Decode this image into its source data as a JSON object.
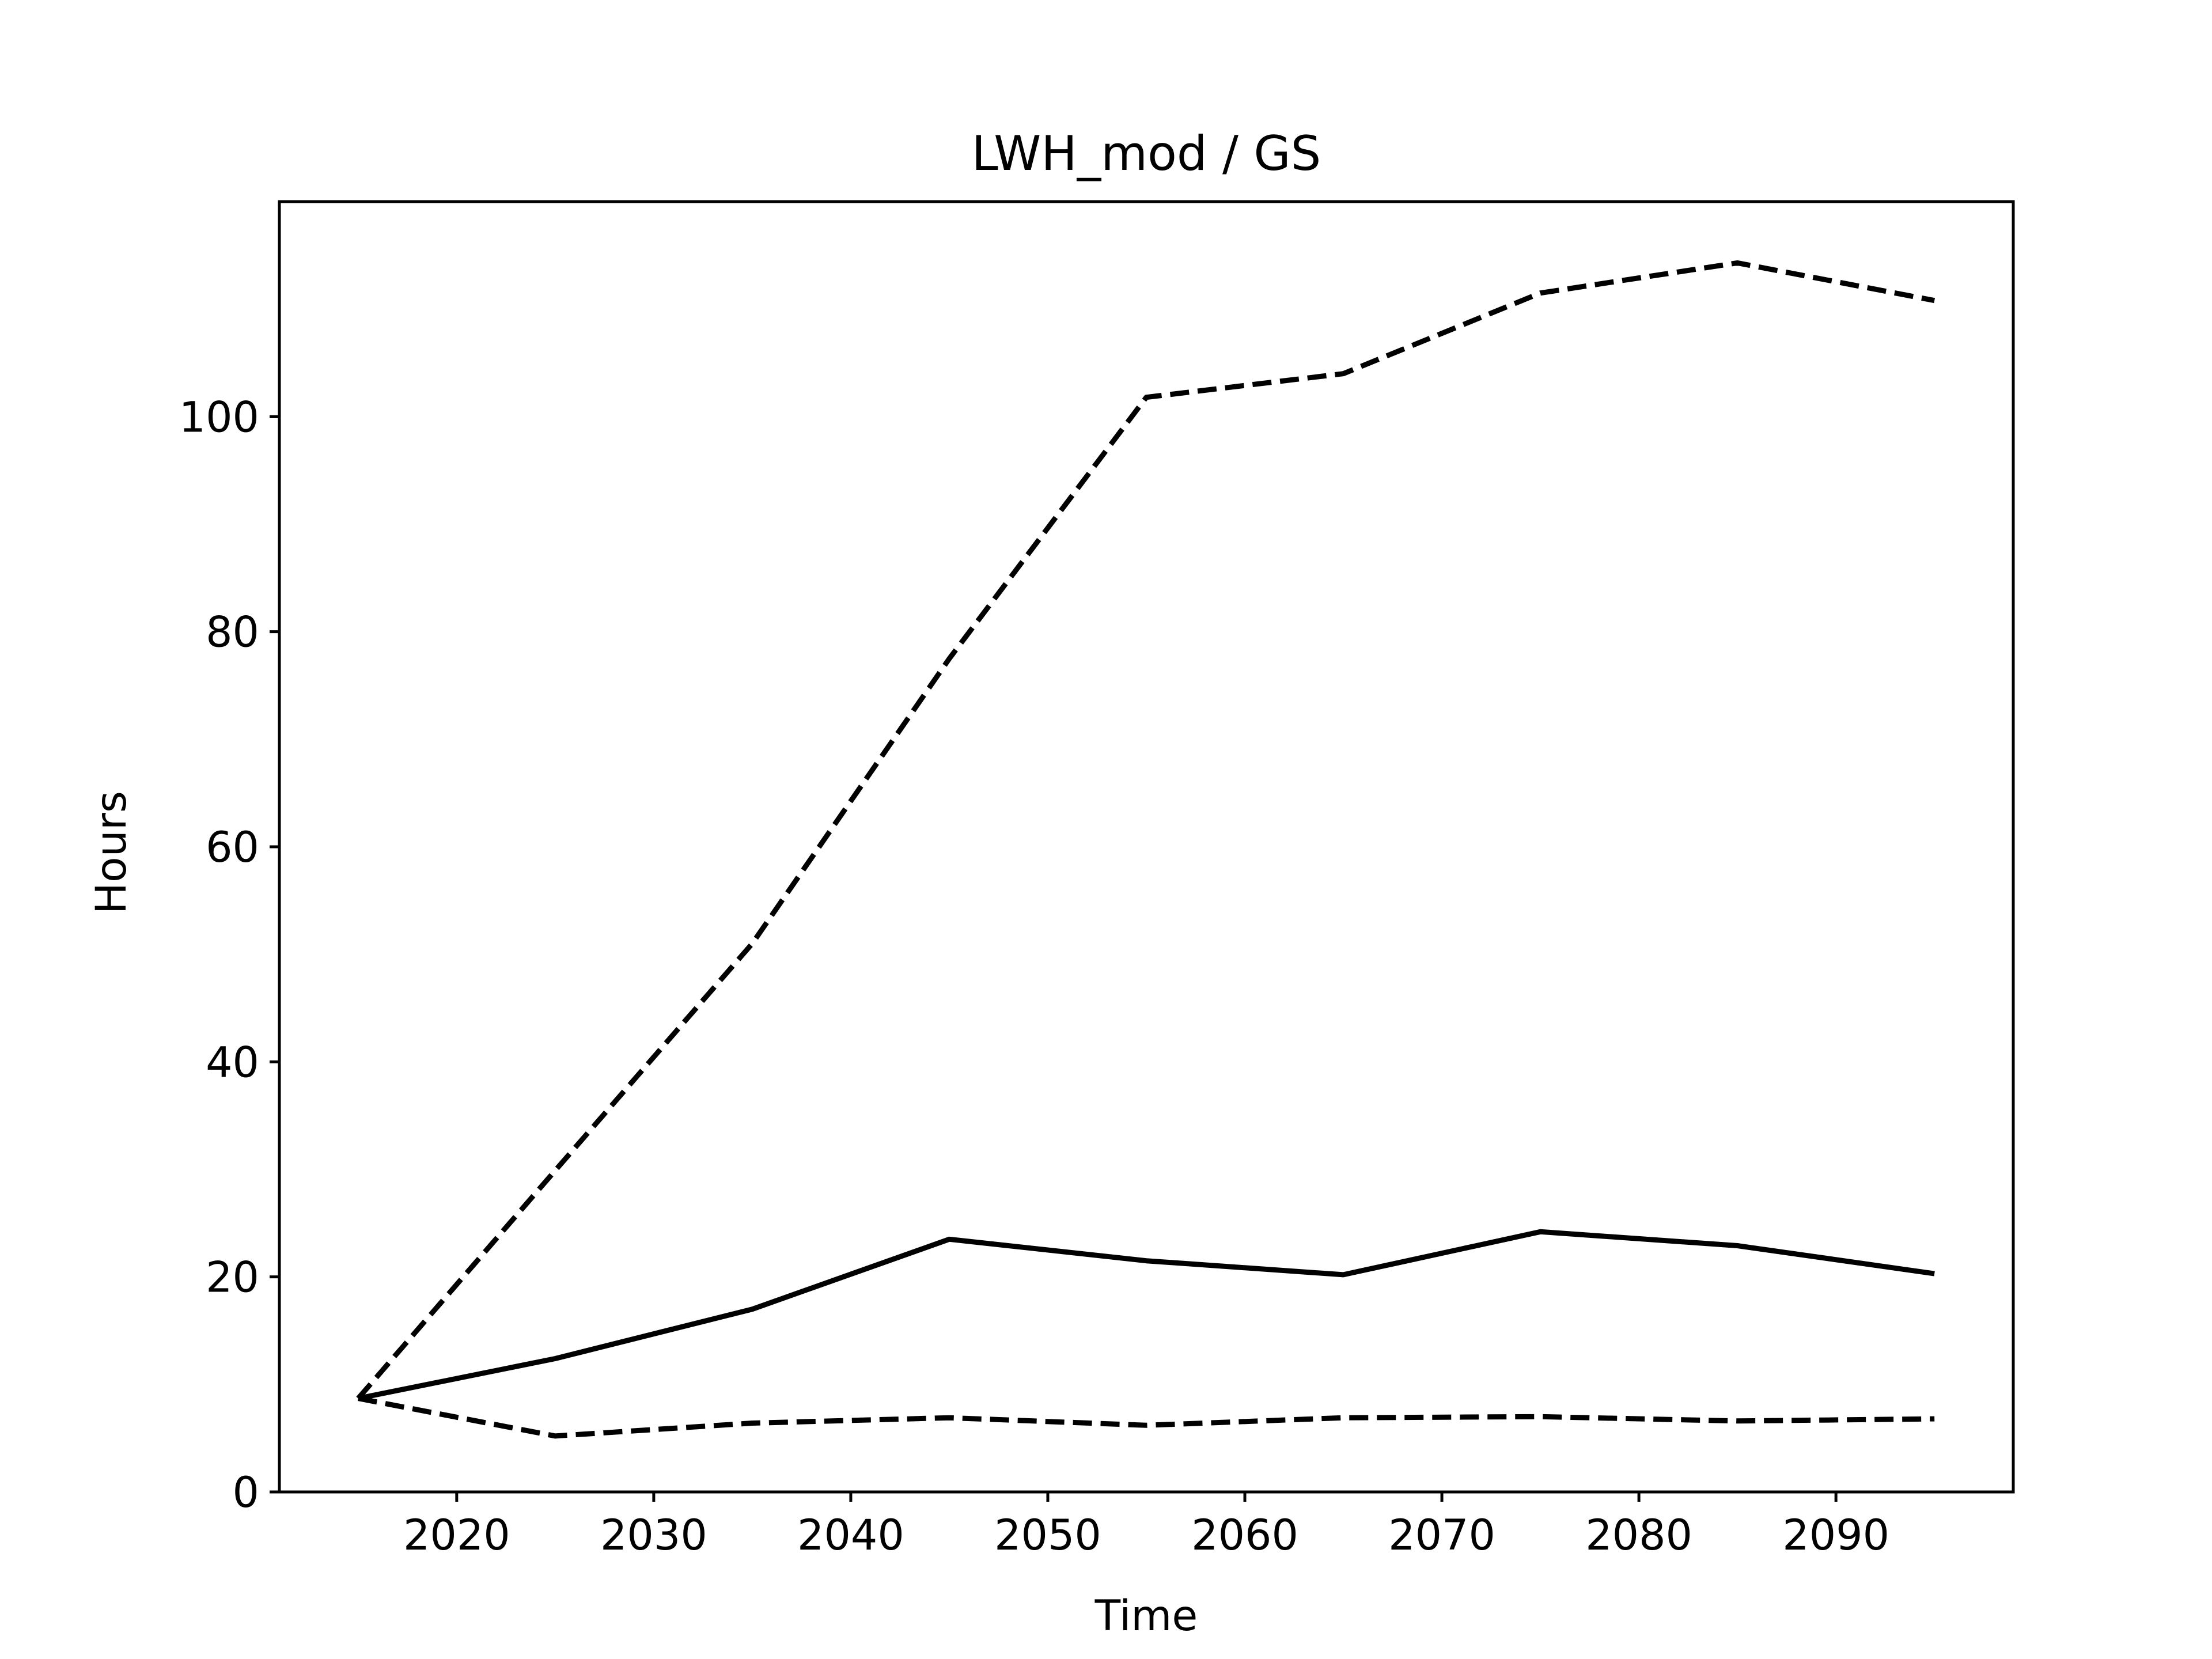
{
  "chart_data": {
    "type": "line",
    "title": "LWH_mod / GS",
    "xlabel": "Time",
    "ylabel": "Hours",
    "xlim": [
      2011,
      2099
    ],
    "ylim": [
      0,
      120
    ],
    "xticks": [
      2020,
      2030,
      2040,
      2050,
      2060,
      2070,
      2080,
      2090
    ],
    "yticks": [
      0,
      20,
      40,
      60,
      80,
      100
    ],
    "grid": false,
    "legend": "none",
    "x": [
      2015,
      2025,
      2035,
      2045,
      2055,
      2065,
      2075,
      2085,
      2095
    ],
    "series": [
      {
        "style": "solid",
        "color": "#000000",
        "values": [
          8.7,
          12.4,
          17.0,
          23.5,
          21.5,
          20.2,
          24.2,
          22.9,
          20.3
        ]
      },
      {
        "style": "dashed",
        "color": "#000000",
        "values": [
          8.7,
          29.9,
          51.0,
          77.5,
          101.8,
          104.0,
          111.5,
          114.3,
          110.8
        ]
      },
      {
        "style": "dashed",
        "color": "#000000",
        "values": [
          8.7,
          5.2,
          6.4,
          6.9,
          6.2,
          6.9,
          7.0,
          6.6,
          6.8
        ]
      }
    ]
  }
}
